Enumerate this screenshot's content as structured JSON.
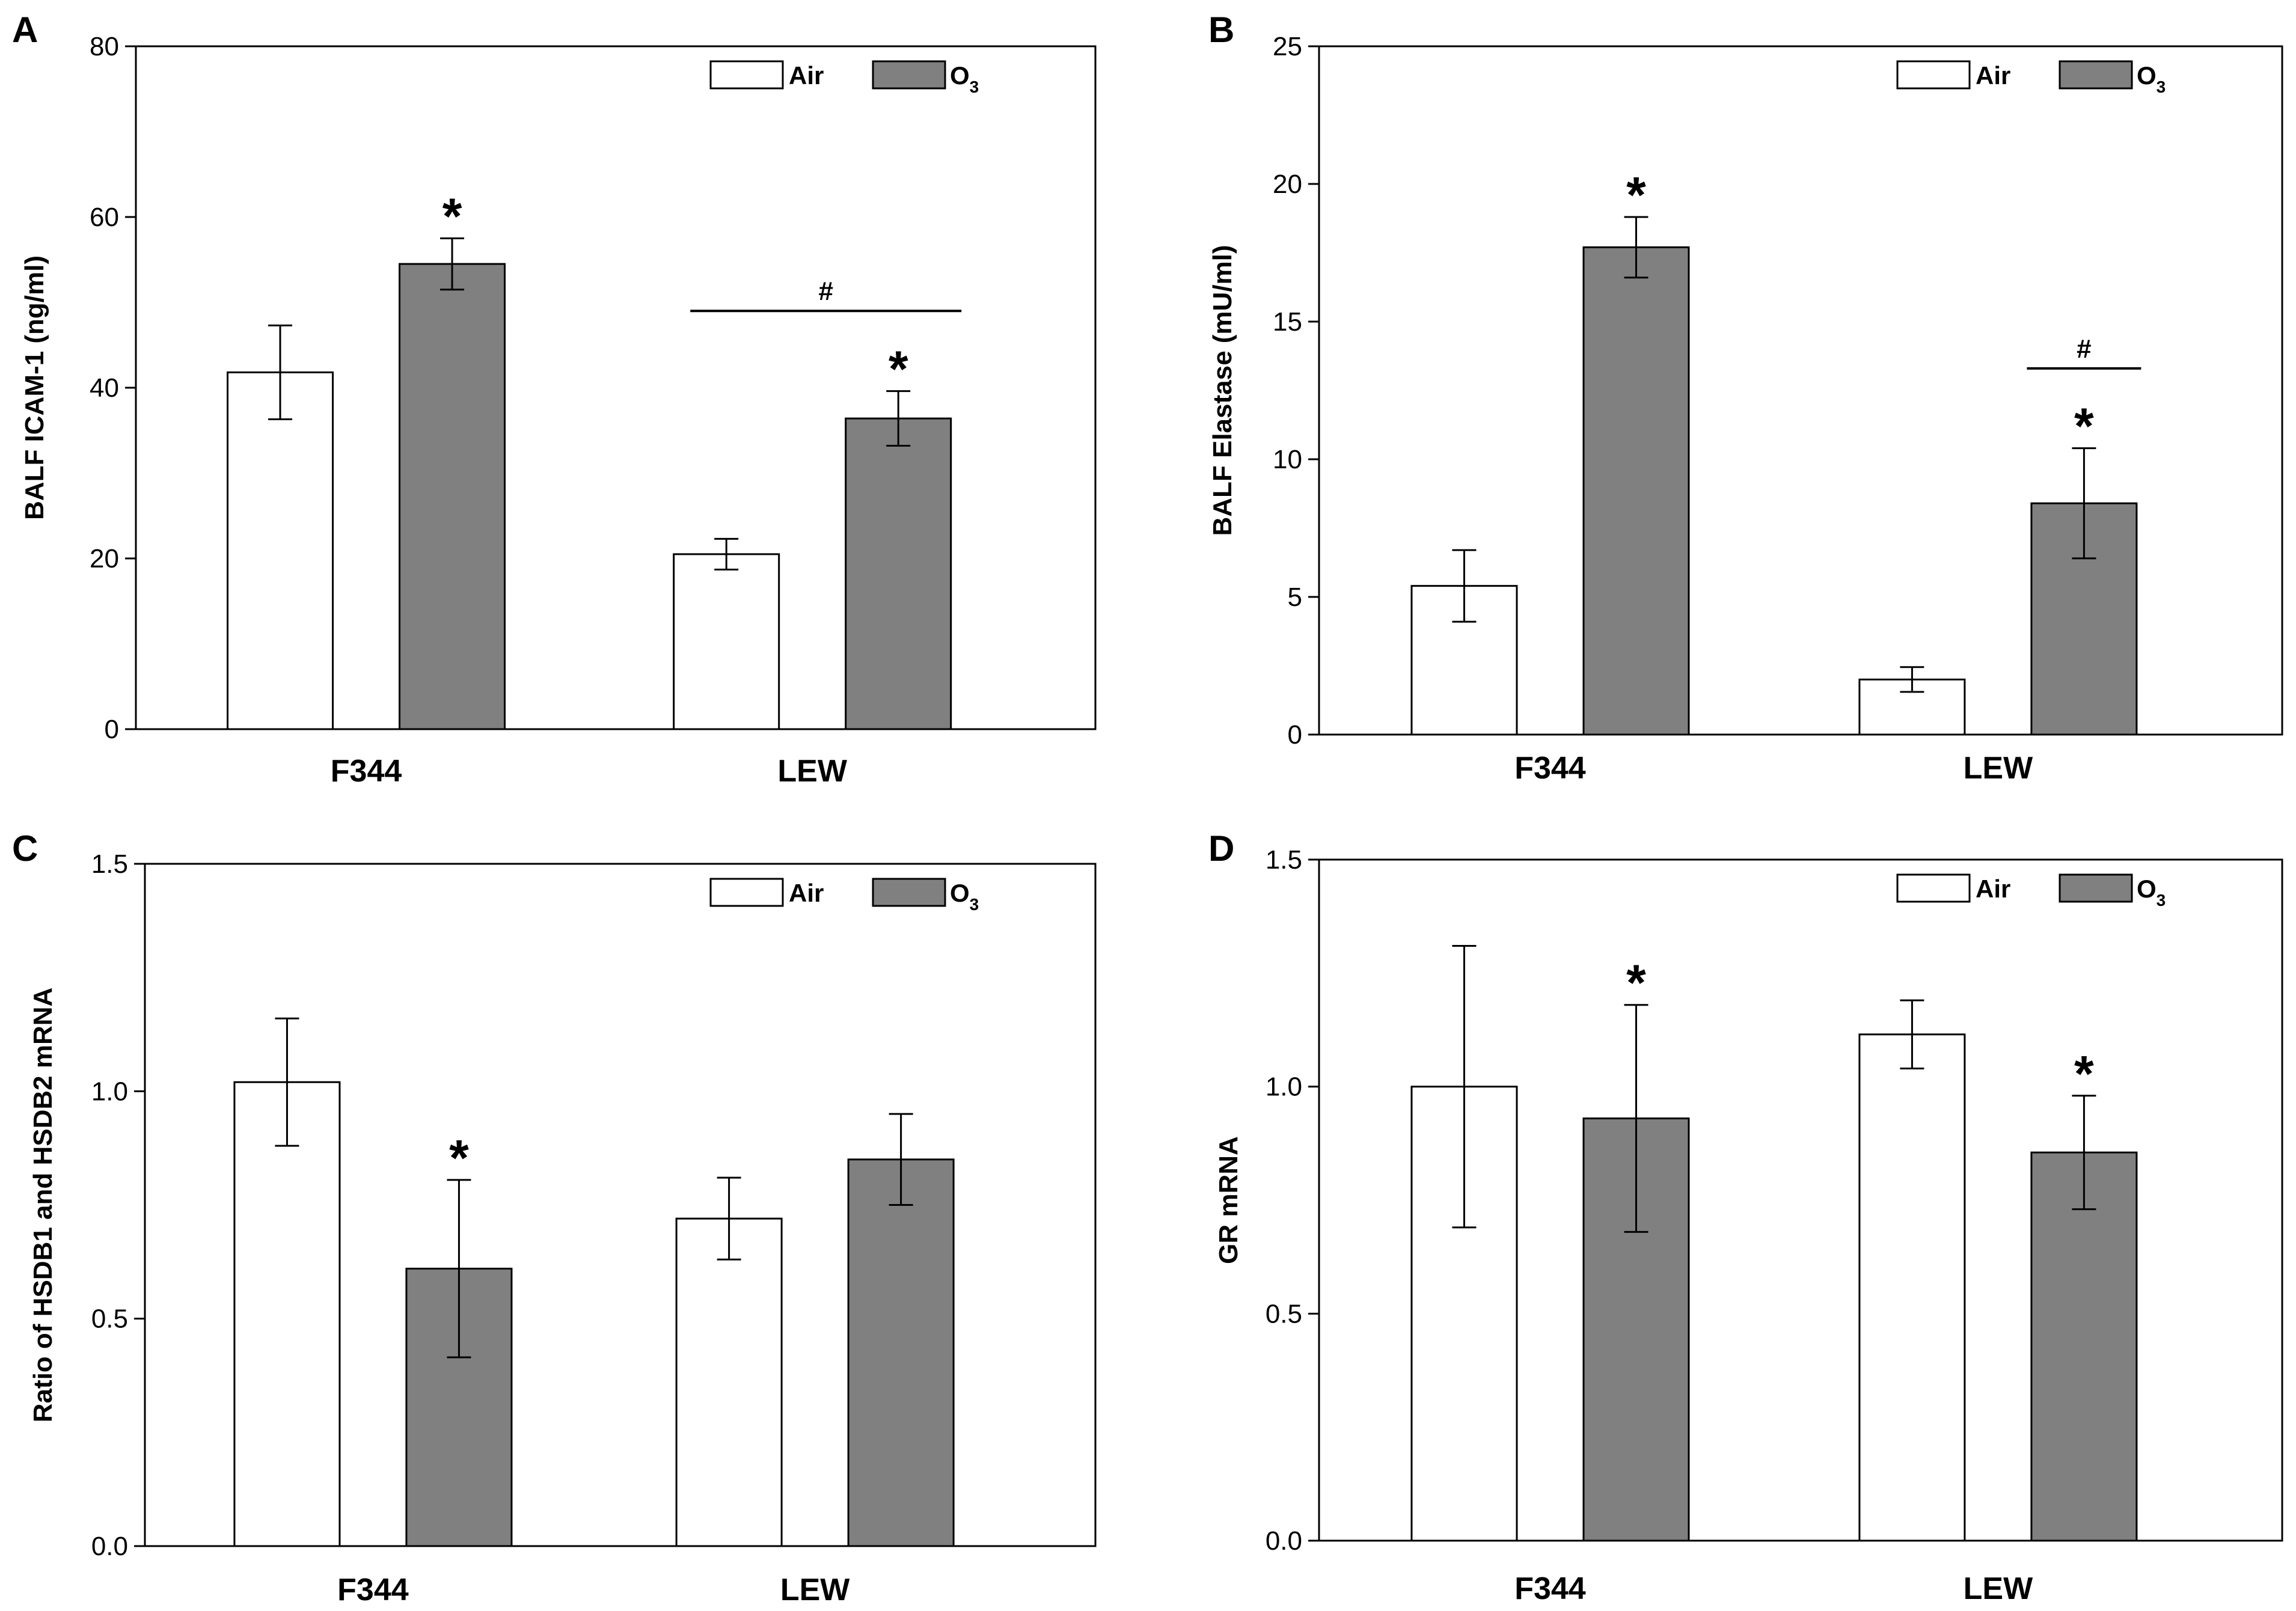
{
  "legend": {
    "air_label": "Air",
    "o3_label": "O",
    "o3_subscript": "3"
  },
  "colors": {
    "air": "#ffffff",
    "o3": "#808080",
    "stroke": "#000000"
  },
  "chart_data": [
    {
      "type": "bar",
      "panel": "A",
      "ylabel": "BALF ICAM-1 (ng/ml)",
      "categories": [
        "F344",
        "LEW"
      ],
      "ylim": [
        0,
        80
      ],
      "yticks": [
        "0",
        "20",
        "40",
        "60",
        "80"
      ],
      "series": [
        {
          "name": "Air",
          "values": [
            41.8,
            20.5
          ],
          "errors": [
            5.5,
            1.8
          ]
        },
        {
          "name": "O3",
          "values": [
            54.5,
            36.4
          ],
          "errors": [
            3.0,
            3.2
          ]
        }
      ],
      "annotations": {
        "stars": [
          [
            "",
            "*"
          ],
          [
            "",
            "*"
          ]
        ],
        "hash": "#",
        "hash_line": {
          "from_category": 1,
          "y": 49
        }
      }
    },
    {
      "type": "bar",
      "panel": "B",
      "ylabel": "BALF Elastase (mU/ml)",
      "categories": [
        "F344",
        "LEW"
      ],
      "ylim": [
        0,
        25
      ],
      "yticks": [
        "0",
        "5",
        "10",
        "15",
        "20",
        "25"
      ],
      "series": [
        {
          "name": "Air",
          "values": [
            5.4,
            2.0
          ],
          "errors": [
            1.3,
            0.45
          ]
        },
        {
          "name": "O3",
          "values": [
            17.7,
            8.4
          ],
          "errors": [
            1.1,
            2.0
          ]
        }
      ],
      "annotations": {
        "stars": [
          [
            "",
            "*"
          ],
          [
            "",
            "*"
          ]
        ],
        "hash": "#",
        "hash_line": {
          "from_category": 1,
          "y": 13.3,
          "o3_only": true
        }
      }
    },
    {
      "type": "bar",
      "panel": "C",
      "ylabel": "Ratio of HSDB1 and HSDB2 mRNA",
      "categories": [
        "F344",
        "LEW"
      ],
      "ylim": [
        0,
        1.5
      ],
      "yticks": [
        "0.0",
        "0.5",
        "1.0",
        "1.5"
      ],
      "series": [
        {
          "name": "Air",
          "values": [
            1.02,
            0.72
          ],
          "errors": [
            0.14,
            0.09
          ]
        },
        {
          "name": "O3",
          "values": [
            0.61,
            0.85
          ],
          "errors": [
            0.195,
            0.1
          ]
        }
      ],
      "annotations": {
        "stars": [
          [
            "",
            "*"
          ],
          [
            "",
            ""
          ]
        ]
      }
    },
    {
      "type": "bar",
      "panel": "D",
      "ylabel": "GR  mRNA",
      "categories": [
        "F344",
        "LEW"
      ],
      "ylim": [
        0,
        1.5
      ],
      "yticks": [
        "0.0",
        "0.5",
        "1.0",
        "1.5"
      ],
      "series": [
        {
          "name": "Air",
          "values": [
            1.0,
            1.115
          ],
          "errors": [
            0.31,
            0.075
          ]
        },
        {
          "name": "O3",
          "values": [
            0.93,
            0.855
          ],
          "errors": [
            0.25,
            0.125
          ]
        }
      ],
      "annotations": {
        "stars": [
          [
            "",
            "*"
          ],
          [
            "",
            "*"
          ]
        ]
      }
    }
  ]
}
